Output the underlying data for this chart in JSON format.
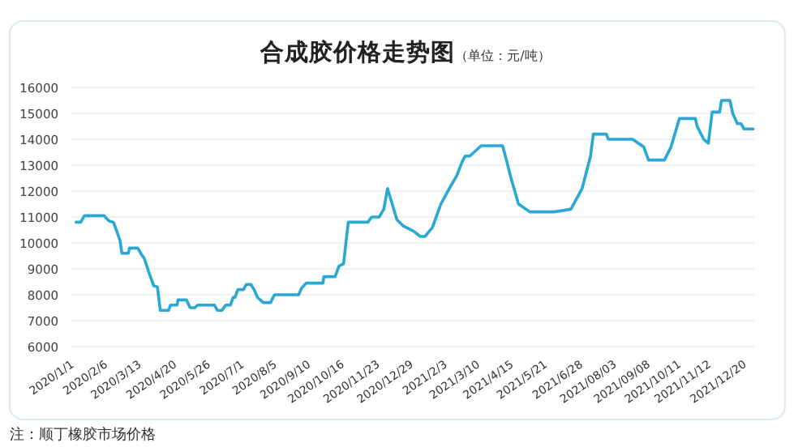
{
  "chart_data": {
    "type": "line",
    "title": "合成胶价格走势图",
    "subtitle": "（单位：元/吨）",
    "annotations": [
      "注：顺丁橡胶市场价格"
    ],
    "ylim": [
      6000,
      16000
    ],
    "yticks": [
      6000,
      7000,
      8000,
      9000,
      10000,
      11000,
      12000,
      13000,
      14000,
      15000,
      16000
    ],
    "xlim": [
      "2020-01-01",
      "2021-12-31"
    ],
    "xticks": [
      {
        "value": "2020-01-01",
        "label": "2020/1/1"
      },
      {
        "value": "2020-02-06",
        "label": "2020/2/6"
      },
      {
        "value": "2020-03-13",
        "label": "2020/3/13"
      },
      {
        "value": "2020-04-20",
        "label": "2020/4/20"
      },
      {
        "value": "2020-05-26",
        "label": "2020/5/26"
      },
      {
        "value": "2020-07-01",
        "label": "2020/7/1"
      },
      {
        "value": "2020-08-05",
        "label": "2020/8/5"
      },
      {
        "value": "2020-09-10",
        "label": "2020/9/10"
      },
      {
        "value": "2020-10-16",
        "label": "2020/10/16"
      },
      {
        "value": "2020-11-23",
        "label": "2020/11/23"
      },
      {
        "value": "2020-12-29",
        "label": "2020/12/29"
      },
      {
        "value": "2021-02-03",
        "label": "2021/2/3"
      },
      {
        "value": "2021-03-10",
        "label": "2021/3/10"
      },
      {
        "value": "2021-04-15",
        "label": "2021/4/15"
      },
      {
        "value": "2021-05-21",
        "label": "2021/5/21"
      },
      {
        "value": "2021-06-28",
        "label": "2021/6/28"
      },
      {
        "value": "2021-08-03",
        "label": "2021/08/03"
      },
      {
        "value": "2021-09-08",
        "label": "2021/09/08"
      },
      {
        "value": "2021-10-11",
        "label": "2021/10/11"
      },
      {
        "value": "2021-11-12",
        "label": "2021/11/12"
      },
      {
        "value": "2021-12-20",
        "label": "2021/12/20"
      }
    ],
    "grid": "y",
    "marker": "none",
    "line_style": "solid",
    "series": [
      {
        "color": "#29a8d4",
        "x": [
          "2020-01-06",
          "2020-01-11",
          "2020-01-15",
          "2020-02-05",
          "2020-02-10",
          "2020-02-15",
          "2020-02-19",
          "2020-02-22",
          "2020-02-24",
          "2020-03-02",
          "2020-03-03",
          "2020-03-12",
          "2020-03-16",
          "2020-03-19",
          "2020-03-24",
          "2020-03-29",
          "2020-04-02",
          "2020-04-05",
          "2020-04-14",
          "2020-04-16",
          "2020-04-23",
          "2020-04-24",
          "2020-05-03",
          "2020-05-07",
          "2020-05-12",
          "2020-05-15",
          "2020-06-02",
          "2020-06-05",
          "2020-06-10",
          "2020-06-14",
          "2020-06-19",
          "2020-06-22",
          "2020-06-24",
          "2020-06-27",
          "2020-07-03",
          "2020-07-06",
          "2020-07-11",
          "2020-07-15",
          "2020-07-18",
          "2020-07-24",
          "2020-08-01",
          "2020-08-05",
          "2020-08-31",
          "2020-09-03",
          "2020-09-08",
          "2020-09-26",
          "2020-09-27",
          "2020-10-09",
          "2020-10-13",
          "2020-10-18",
          "2020-10-23",
          "2020-11-13",
          "2020-11-17",
          "2020-11-25",
          "2020-11-30",
          "2020-12-04",
          "2020-12-09",
          "2020-12-14",
          "2020-12-21",
          "2021-01-01",
          "2021-01-08",
          "2021-01-13",
          "2021-01-21",
          "2021-01-30",
          "2021-02-08",
          "2021-02-16",
          "2021-02-22",
          "2021-02-25",
          "2021-03-02",
          "2021-03-14",
          "2021-04-06",
          "2021-04-09",
          "2021-04-15",
          "2021-04-23",
          "2021-05-05",
          "2021-05-31",
          "2021-06-18",
          "2021-06-30",
          "2021-07-09",
          "2021-07-12",
          "2021-07-26",
          "2021-07-28",
          "2021-08-23",
          "2021-09-04",
          "2021-09-09",
          "2021-09-26",
          "2021-10-03",
          "2021-10-12",
          "2021-10-29",
          "2021-10-31",
          "2021-11-07",
          "2021-11-12",
          "2021-11-16",
          "2021-11-24",
          "2021-11-26",
          "2021-12-05",
          "2021-12-08",
          "2021-12-13",
          "2021-12-17",
          "2021-12-20",
          "2021-12-30"
        ],
        "values": [
          10800,
          10800,
          11050,
          11050,
          10850,
          10800,
          10400,
          10100,
          9600,
          9600,
          9800,
          9800,
          9550,
          9400,
          8850,
          8350,
          8300,
          7400,
          7400,
          7600,
          7600,
          7800,
          7800,
          7500,
          7500,
          7600,
          7600,
          7400,
          7400,
          7600,
          7600,
          7900,
          7900,
          8200,
          8200,
          8400,
          8400,
          8150,
          7900,
          7700,
          7700,
          8000,
          8000,
          8250,
          8450,
          8450,
          8700,
          8700,
          9100,
          9200,
          10800,
          10800,
          11000,
          11000,
          11300,
          12100,
          11500,
          10900,
          10650,
          10450,
          10250,
          10250,
          10600,
          11500,
          12100,
          12600,
          13150,
          13350,
          13350,
          13750,
          13750,
          13350,
          12500,
          11500,
          11200,
          11200,
          11300,
          12100,
          13350,
          14200,
          14200,
          14000,
          14000,
          13700,
          13200,
          13200,
          13700,
          14800,
          14800,
          14500,
          14000,
          13850,
          15050,
          15050,
          15500,
          15500,
          15000,
          14600,
          14600,
          14400,
          14400
        ]
      }
    ]
  }
}
